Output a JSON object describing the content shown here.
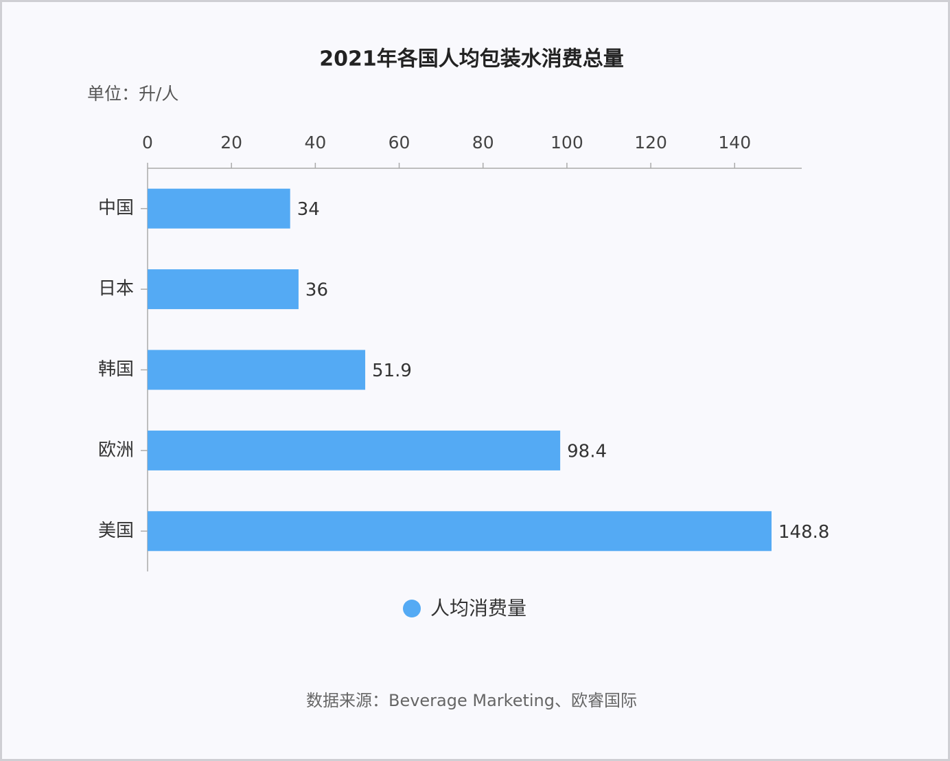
{
  "chart_data": {
    "type": "bar",
    "orientation": "horizontal",
    "title": "2021年各国人均包装水消费总量",
    "subtitle": "单位：升/人",
    "categories": [
      "中国",
      "日本",
      "韩国",
      "欧洲",
      "美国"
    ],
    "series": [
      {
        "name": "人均消费量",
        "color": "#54aaf4",
        "values": [
          34,
          36,
          51.9,
          98.4,
          148.8
        ]
      }
    ],
    "xlim": [
      0,
      156
    ],
    "xticks": [
      0,
      20,
      40,
      60,
      80,
      100,
      120,
      140
    ],
    "legend": "bottom",
    "source": "数据来源：Beverage Marketing、欧睿国际"
  }
}
